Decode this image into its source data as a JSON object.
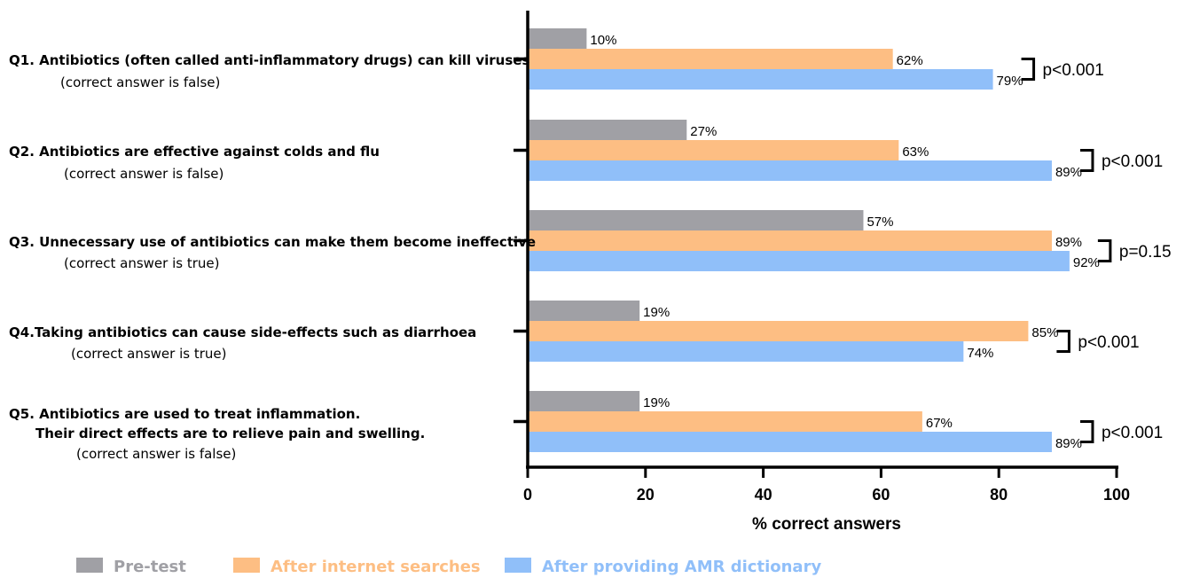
{
  "chart_data": {
    "type": "bar",
    "orientation": "horizontal",
    "categories": [
      {
        "title": "Q1. Antibiotics (often called anti-inflammatory drugs) can kill viruses",
        "note": "(correct answer is false)"
      },
      {
        "title": "Q2. Antibiotics are effective against colds and flu",
        "note": "(correct answer is false)"
      },
      {
        "title": "Q3. Unnecessary use of antibiotics can make them become ineffective",
        "note": "(correct answer is true)"
      },
      {
        "title": "Q4.Taking antibiotics can cause side-effects such as diarrhoea",
        "note": "(correct answer is true)"
      },
      {
        "title": "Q5. Antibiotics are used to treat inflammation.",
        "title2": "Their direct effects are to relieve pain and swelling.",
        "note": "(correct answer is false)"
      }
    ],
    "series": [
      {
        "name": "Pre-test",
        "color": "#a0a0a5",
        "values": [
          10,
          27,
          57,
          19,
          19
        ],
        "labels": [
          "10%",
          "27%",
          "57%",
          "19%",
          "19%"
        ]
      },
      {
        "name": "After internet searches",
        "color": "#fdbe83",
        "values": [
          62,
          63,
          89,
          85,
          67
        ],
        "labels": [
          "62%",
          "63%",
          "89%",
          "85%",
          "67%"
        ]
      },
      {
        "name": "After providing AMR dictionary",
        "color": "#90bff9",
        "values": [
          79,
          89,
          92,
          74,
          89
        ],
        "labels": [
          "79%",
          "89%",
          "92%",
          "74%",
          "89%"
        ]
      }
    ],
    "p_values": [
      "p<0.001",
      "p<0.001",
      "p=0.15",
      "p<0.001",
      "p<0.001"
    ],
    "xlabel": "% correct answers",
    "xlim": [
      0,
      100
    ],
    "xticks": [
      0,
      20,
      40,
      60,
      80,
      100
    ],
    "legend_position": "bottom"
  }
}
